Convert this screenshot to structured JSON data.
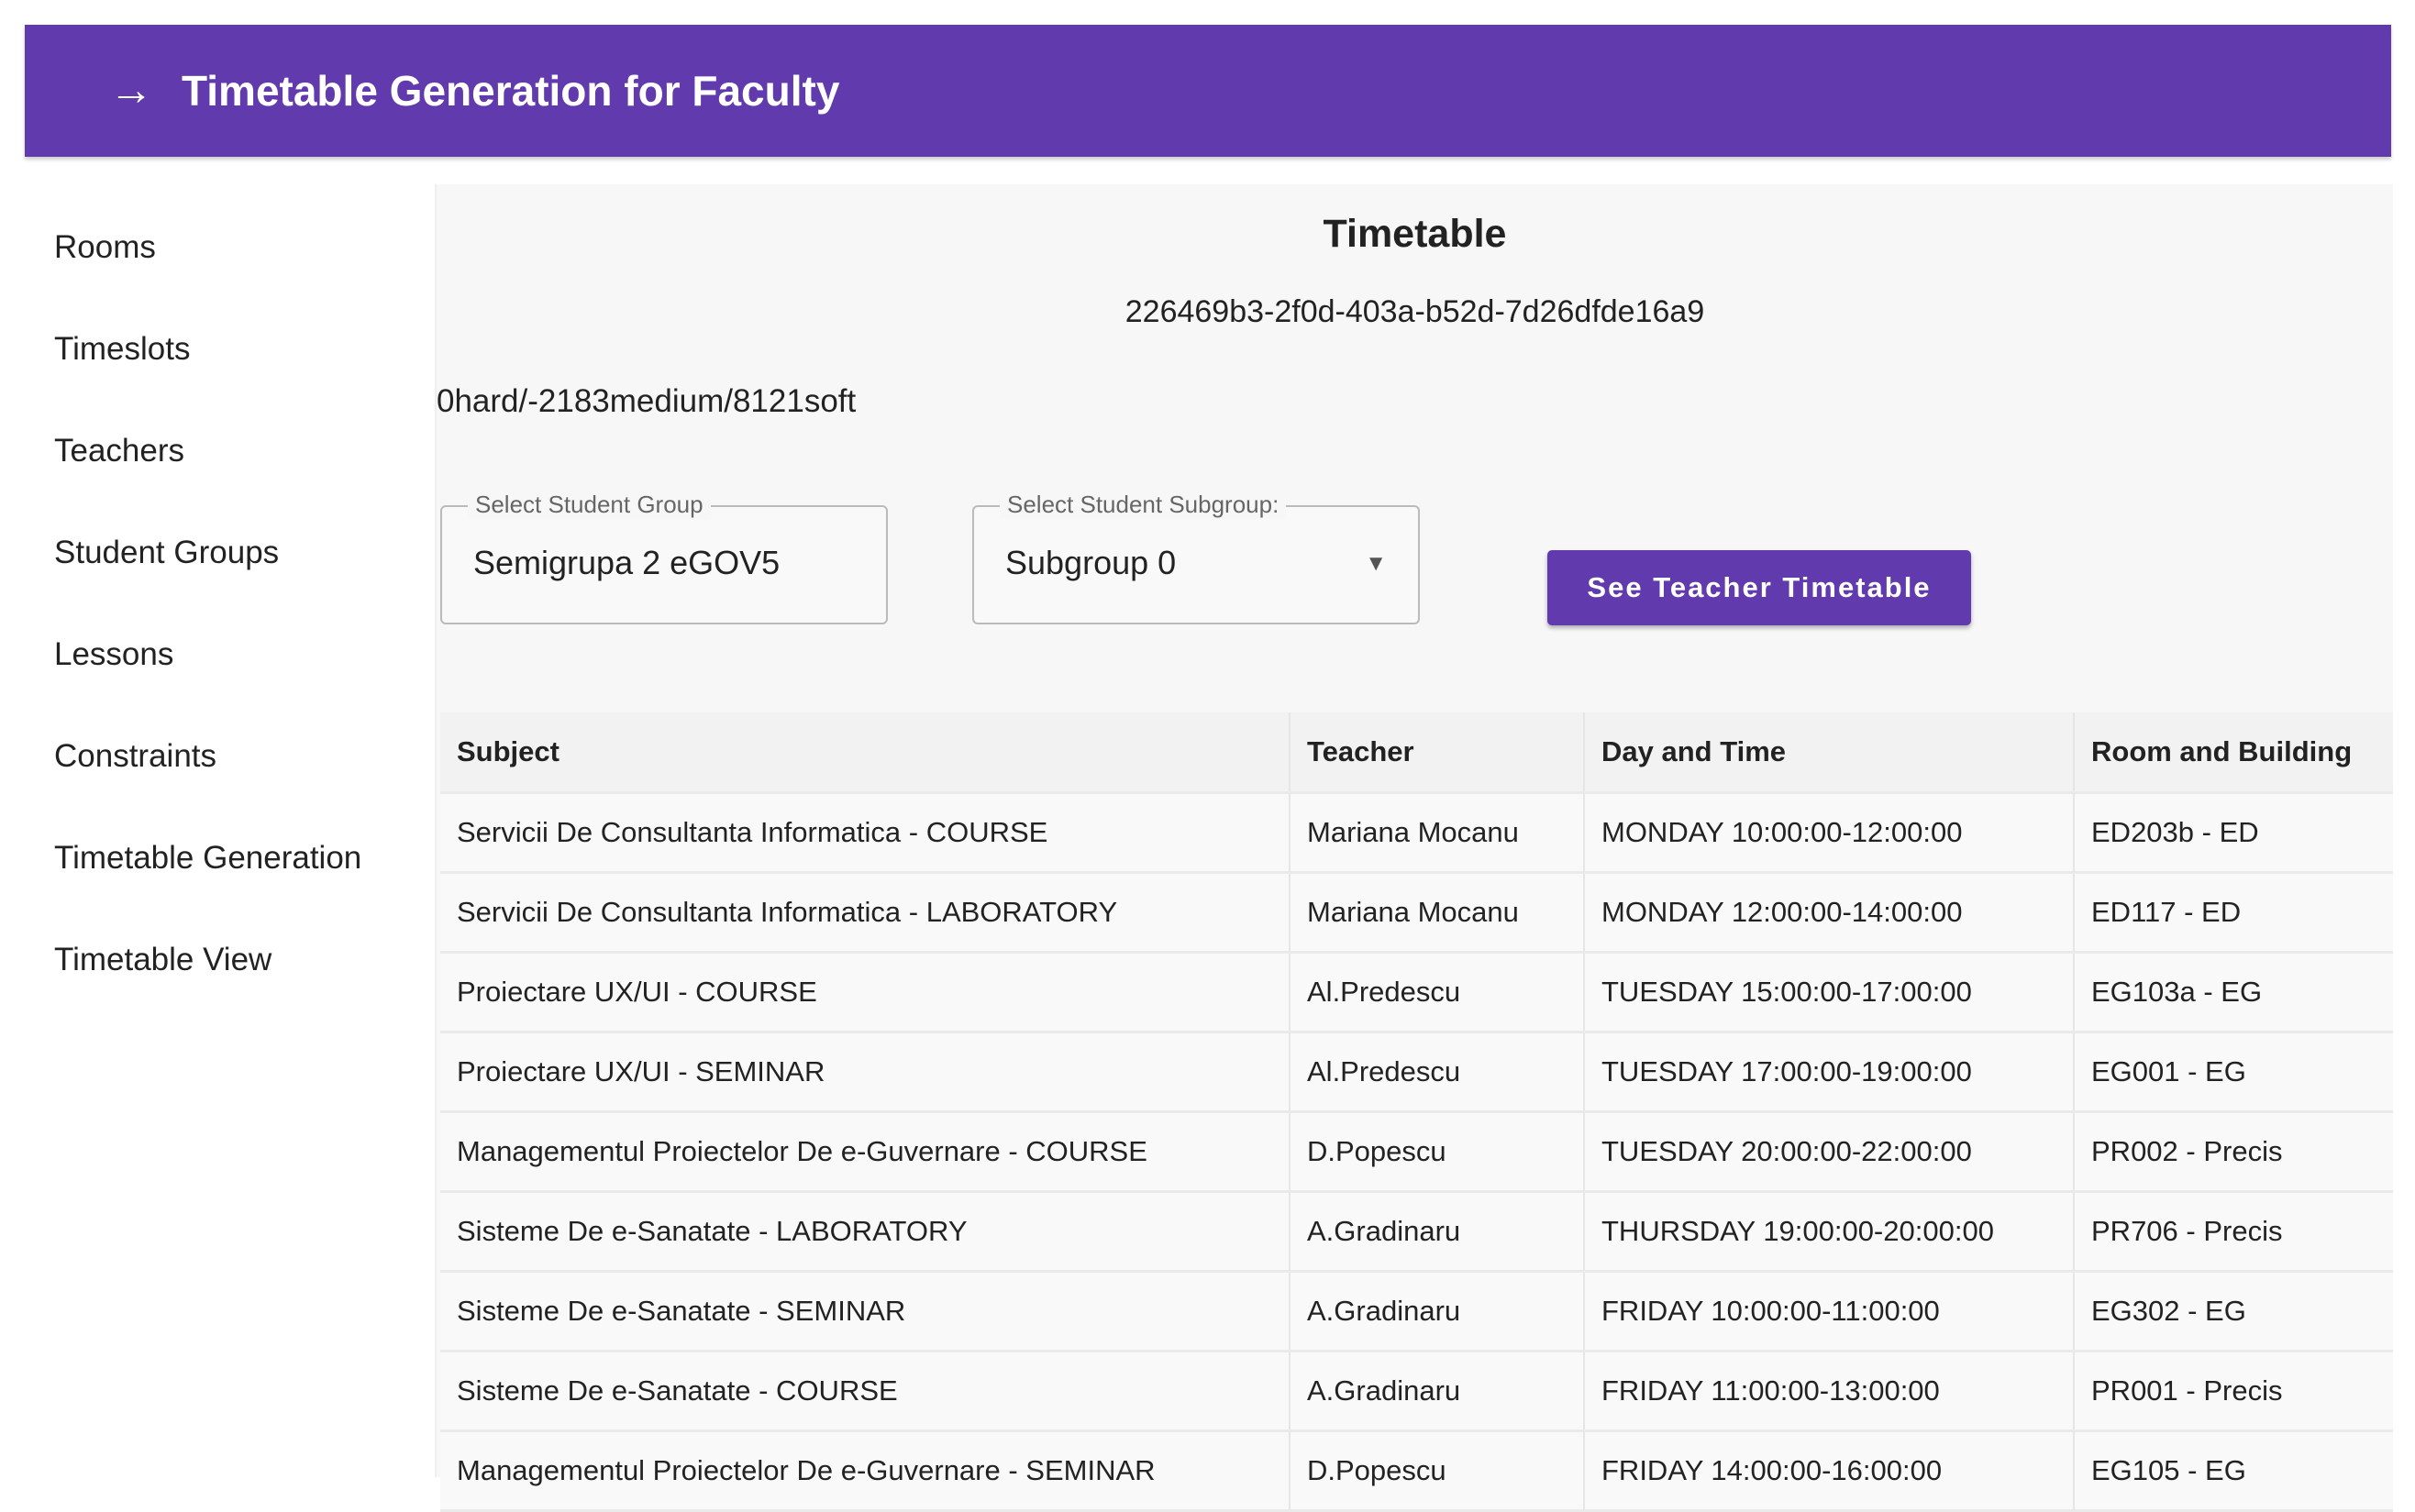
{
  "header": {
    "title": "Timetable Generation for Faculty",
    "icon": "arrow-right-icon"
  },
  "sidebar": {
    "items": [
      {
        "label": "Rooms"
      },
      {
        "label": "Timeslots"
      },
      {
        "label": "Teachers"
      },
      {
        "label": "Student Groups"
      },
      {
        "label": "Lessons"
      },
      {
        "label": "Constraints"
      },
      {
        "label": "Timetable Generation"
      },
      {
        "label": "Timetable View"
      }
    ]
  },
  "main": {
    "title": "Timetable",
    "timetable_id": "226469b3-2f0d-403a-b52d-7d26dfde16a9",
    "score": "0hard/-2183medium/8121soft",
    "group_select": {
      "label": "Select Student Group",
      "value": "Semigrupa 2 eGOV5"
    },
    "subgroup_select": {
      "label": "Select Student Subgroup:",
      "value": "Subgroup 0"
    },
    "teacher_button": "See Teacher Timetable",
    "table": {
      "headers": [
        "Subject",
        "Teacher",
        "Day and Time",
        "Room and Building"
      ],
      "rows": [
        [
          "Servicii De Consultanta Informatica - COURSE",
          "Mariana Mocanu",
          "MONDAY 10:00:00-12:00:00",
          "ED203b - ED"
        ],
        [
          "Servicii De Consultanta Informatica - LABORATORY",
          "Mariana Mocanu",
          "MONDAY 12:00:00-14:00:00",
          "ED117 - ED"
        ],
        [
          "Proiectare UX/UI - COURSE",
          "Al.Predescu",
          "TUESDAY 15:00:00-17:00:00",
          "EG103a - EG"
        ],
        [
          "Proiectare UX/UI - SEMINAR",
          "Al.Predescu",
          "TUESDAY 17:00:00-19:00:00",
          "EG001 - EG"
        ],
        [
          "Managementul Proiectelor De e-Guvernare - COURSE",
          "D.Popescu",
          "TUESDAY 20:00:00-22:00:00",
          "PR002 - Precis"
        ],
        [
          "Sisteme De e-Sanatate - LABORATORY",
          "A.Gradinaru",
          "THURSDAY 19:00:00-20:00:00",
          "PR706 - Precis"
        ],
        [
          "Sisteme De e-Sanatate - SEMINAR",
          "A.Gradinaru",
          "FRIDAY 10:00:00-11:00:00",
          "EG302 - EG"
        ],
        [
          "Sisteme De e-Sanatate - COURSE",
          "A.Gradinaru",
          "FRIDAY 11:00:00-13:00:00",
          "PR001 - Precis"
        ],
        [
          "Managementul Proiectelor De e-Guvernare - SEMINAR",
          "D.Popescu",
          "FRIDAY 14:00:00-16:00:00",
          "EG105 - EG"
        ]
      ]
    }
  },
  "colors": {
    "primary": "#613bae"
  }
}
